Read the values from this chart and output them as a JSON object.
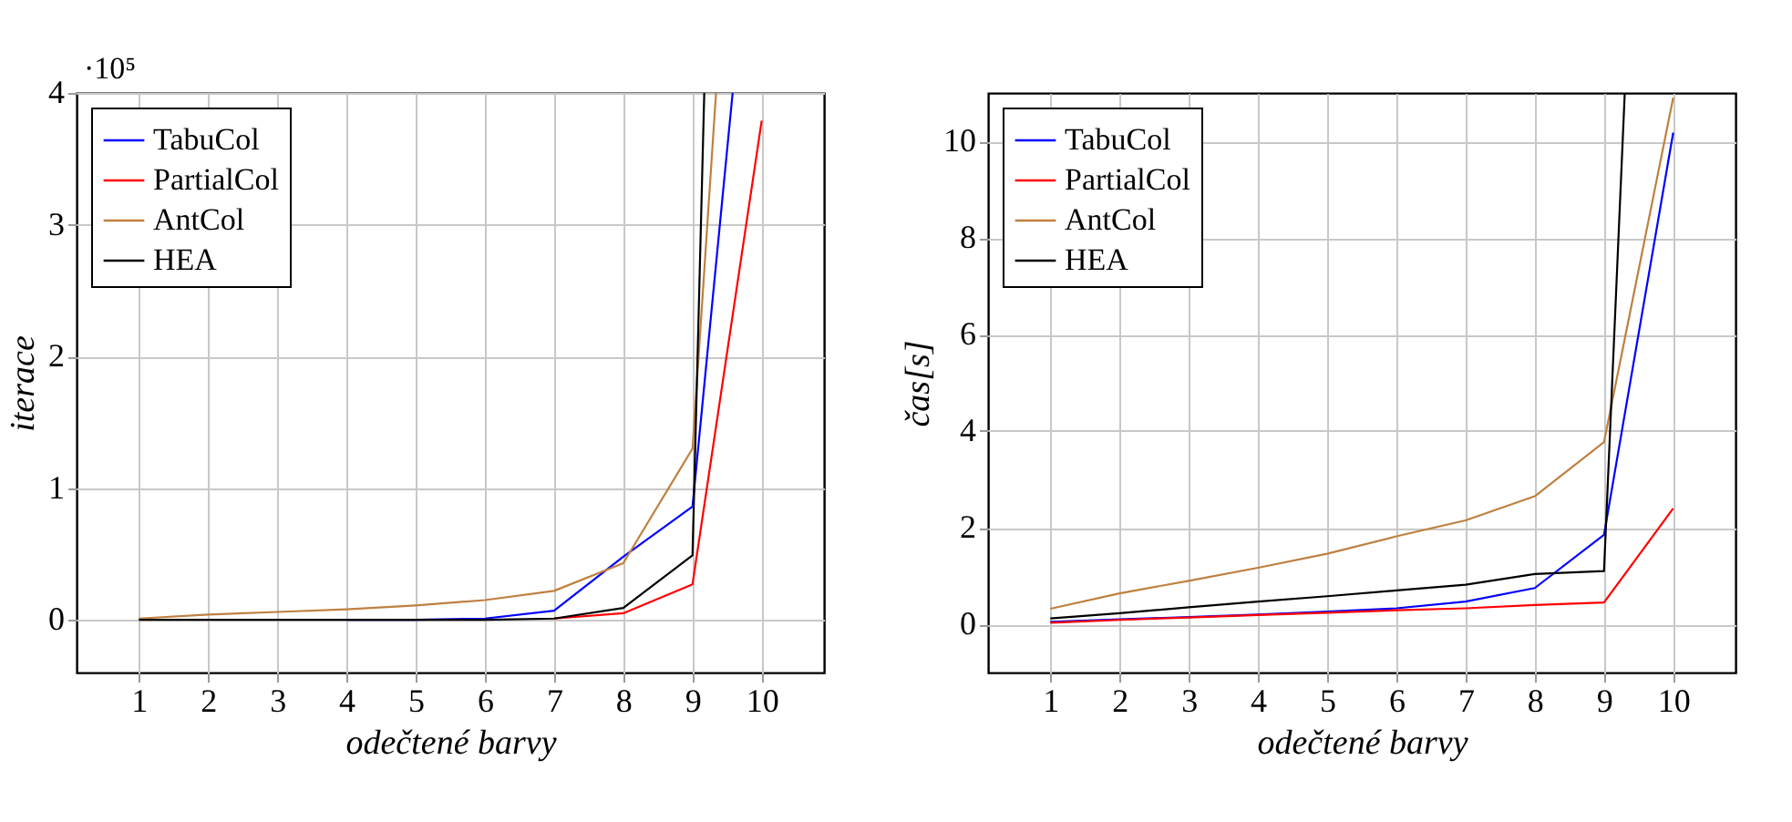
{
  "chart_data": [
    {
      "type": "line",
      "xlabel": "odečtené barvy",
      "ylabel": "iterace",
      "annotations": [
        "·10⁵"
      ],
      "xlim": [
        0.1,
        10.9
      ],
      "ylim": [
        -0.4,
        4
      ],
      "xticks": [
        1,
        2,
        3,
        4,
        5,
        6,
        7,
        8,
        9,
        10
      ],
      "yticks": [
        0,
        1,
        2,
        3,
        4
      ],
      "grid": true,
      "legend": "top left",
      "marker": "none",
      "line_style": "solid",
      "series": [
        {
          "name": "TabuCol",
          "color": "#0000ff",
          "x": [
            4,
            5,
            6,
            7,
            8,
            9,
            9.58
          ],
          "values": [
            0.0,
            0.0,
            0.01,
            0.07,
            0.48,
            0.86,
            4
          ]
        },
        {
          "name": "PartialCol",
          "color": "#ff0000",
          "x": [
            7,
            8,
            9,
            10
          ],
          "values": [
            0.01,
            0.05,
            0.27,
            3.79
          ]
        },
        {
          "name": "AntCol",
          "color": "#bf8040",
          "x": [
            1,
            2,
            3,
            4,
            5,
            6,
            7,
            8,
            9,
            9.34
          ],
          "values": [
            0.01,
            0.04,
            0.06,
            0.08,
            0.11,
            0.15,
            0.22,
            0.43,
            1.3,
            4
          ]
        },
        {
          "name": "HEA",
          "color": "#000000",
          "x": [
            1,
            2,
            3,
            4,
            5,
            6,
            7,
            8,
            9,
            9.17
          ],
          "values": [
            0.0,
            0.0,
            0.0,
            0.0,
            0.0,
            0.0,
            0.01,
            0.09,
            0.49,
            4
          ]
        }
      ]
    },
    {
      "type": "line",
      "xlabel": "odečtené barvy",
      "ylabel": "čas[s]",
      "xlim": [
        0.1,
        10.9
      ],
      "ylim": [
        -1,
        11
      ],
      "xticks": [
        1,
        2,
        3,
        4,
        5,
        6,
        7,
        8,
        9,
        10
      ],
      "yticks": [
        0,
        2,
        4,
        6,
        8,
        10
      ],
      "grid": true,
      "legend": "top left",
      "marker": "none",
      "line_style": "solid",
      "series": [
        {
          "name": "TabuCol",
          "color": "#0000ff",
          "x": [
            1,
            2,
            3,
            4,
            5,
            6,
            7,
            8,
            9,
            10
          ],
          "values": [
            0.05,
            0.1,
            0.15,
            0.2,
            0.26,
            0.33,
            0.47,
            0.75,
            1.85,
            10.18
          ]
        },
        {
          "name": "PartialCol",
          "color": "#ff0000",
          "x": [
            1,
            2,
            3,
            4,
            5,
            6,
            7,
            8,
            9,
            10
          ],
          "values": [
            0.03,
            0.09,
            0.14,
            0.19,
            0.24,
            0.29,
            0.33,
            0.4,
            0.45,
            2.4
          ]
        },
        {
          "name": "AntCol",
          "color": "#bf8040",
          "x": [
            1,
            2,
            3,
            4,
            5,
            6,
            7,
            8,
            9,
            10
          ],
          "values": [
            0.32,
            0.64,
            0.9,
            1.17,
            1.46,
            1.82,
            2.15,
            2.65,
            3.77,
            10.9
          ]
        },
        {
          "name": "HEA",
          "color": "#000000",
          "x": [
            1,
            2,
            3,
            4,
            5,
            6,
            7,
            8,
            9,
            9.3
          ],
          "values": [
            0.12,
            0.23,
            0.35,
            0.47,
            0.58,
            0.7,
            0.82,
            1.04,
            1.1,
            11
          ]
        }
      ]
    }
  ]
}
